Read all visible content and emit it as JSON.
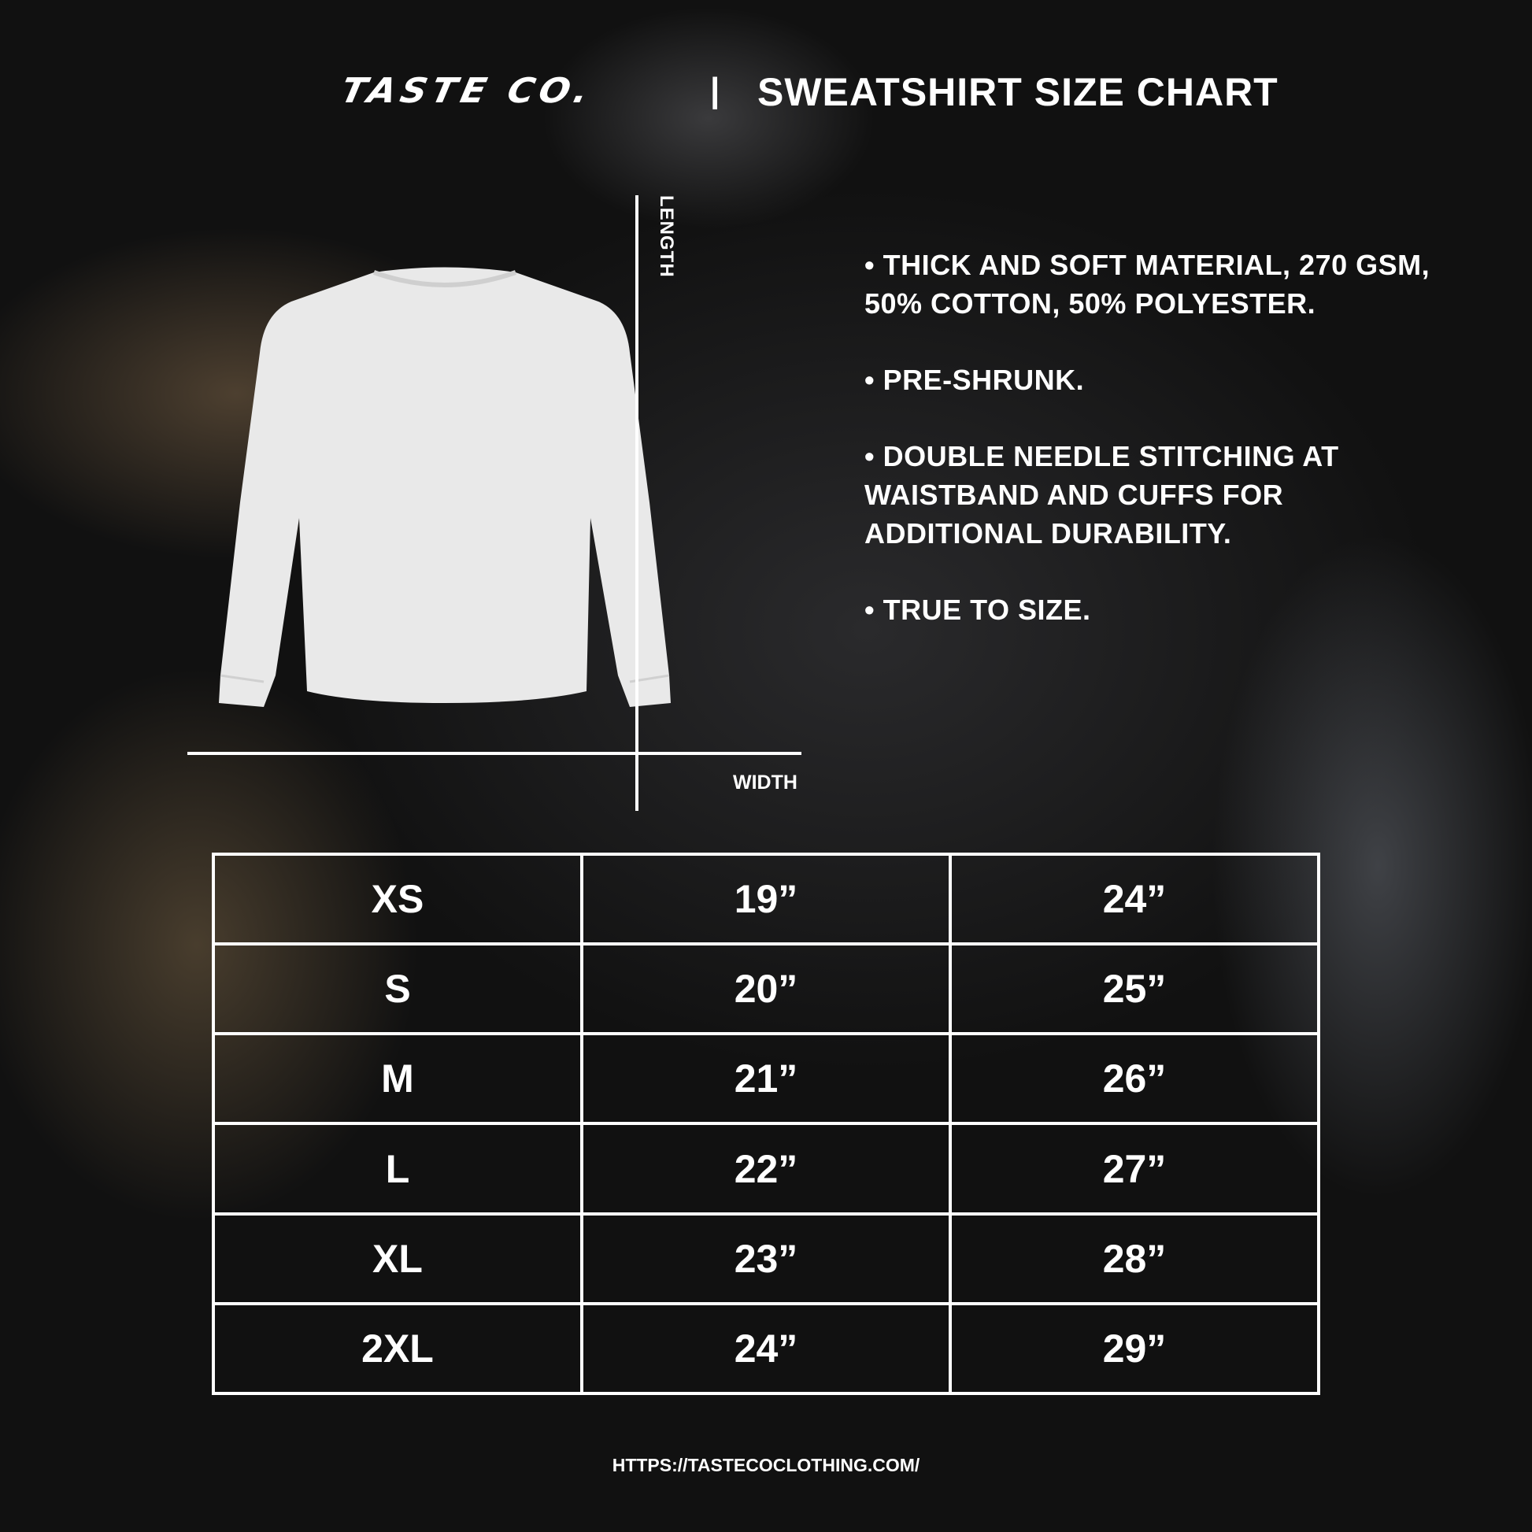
{
  "header": {
    "brand": "TASTE CO.",
    "separator": "|",
    "title": "SWEATSHIRT SIZE CHART"
  },
  "diagram": {
    "length_label": "LENGTH",
    "width_label": "WIDTH",
    "garment_icon": "long-sleeve-sweatshirt"
  },
  "features": [
    "• THICK AND SOFT MATERIAL, 270 GSM, 50% COTTON, 50% POLYESTER.",
    "• PRE-SHRUNK.",
    "• DOUBLE NEEDLE STITCHING AT WAISTBAND AND CUFFS FOR ADDITIONAL DURABILITY.",
    "• TRUE TO SIZE."
  ],
  "size_table": {
    "rows": [
      [
        "XS",
        "19”",
        "24”"
      ],
      [
        "S",
        "20”",
        "25”"
      ],
      [
        "M",
        "21”",
        "26”"
      ],
      [
        "L",
        "22”",
        "27”"
      ],
      [
        "XL",
        "23”",
        "28”"
      ],
      [
        "2XL",
        "24”",
        "29”"
      ]
    ]
  },
  "footer": {
    "url": "HTTPS://TASTECOCLOTHING.COM/"
  }
}
